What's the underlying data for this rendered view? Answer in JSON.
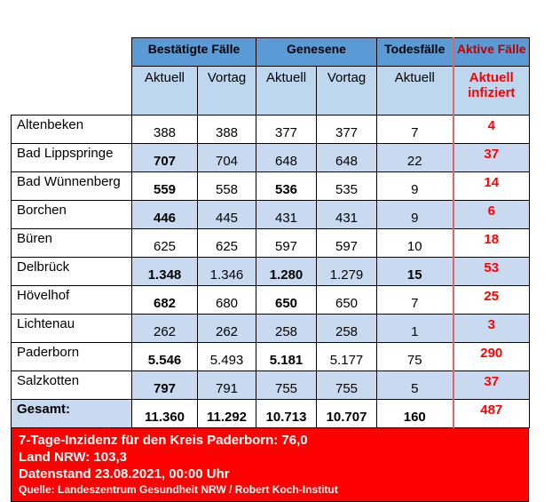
{
  "headers": {
    "confirmed": "Bestätigte Fälle",
    "recovered": "Genesene",
    "deaths": "Todesfälle",
    "active": "Aktive Fälle"
  },
  "subheaders": {
    "current": "Aktuell",
    "previous": "Vortag",
    "deaths_current": "Aktuell",
    "active_line1": "Aktuell",
    "active_line2": "infiziert"
  },
  "rows": [
    {
      "name": "Altenbeken",
      "conf": "388",
      "conf_prev": "388",
      "rec": "377",
      "rec_prev": "377",
      "deaths": "7",
      "active": "4"
    },
    {
      "name": "Bad Lippspringe",
      "conf": "707",
      "conf_prev": "704",
      "rec": "648",
      "rec_prev": "648",
      "deaths": "22",
      "active": "37"
    },
    {
      "name": "Bad Wünnenberg",
      "conf": "559",
      "conf_prev": "558",
      "rec": "536",
      "rec_prev": "535",
      "deaths": "9",
      "active": "14"
    },
    {
      "name": "Borchen",
      "conf": "446",
      "conf_prev": "445",
      "rec": "431",
      "rec_prev": "431",
      "deaths": "9",
      "active": "6"
    },
    {
      "name": "Büren",
      "conf": "625",
      "conf_prev": "625",
      "rec": "597",
      "rec_prev": "597",
      "deaths": "10",
      "active": "18"
    },
    {
      "name": "Delbrück",
      "conf": "1.348",
      "conf_prev": "1.346",
      "rec": "1.280",
      "rec_prev": "1.279",
      "deaths": "15",
      "active": "53"
    },
    {
      "name": "Hövelhof",
      "conf": "682",
      "conf_prev": "680",
      "rec": "650",
      "rec_prev": "650",
      "deaths": "7",
      "active": "25"
    },
    {
      "name": "Lichtenau",
      "conf": "262",
      "conf_prev": "262",
      "rec": "258",
      "rec_prev": "258",
      "deaths": "1",
      "active": "3"
    },
    {
      "name": "Paderborn",
      "conf": "5.546",
      "conf_prev": "5.493",
      "rec": "5.181",
      "rec_prev": "5.177",
      "deaths": "75",
      "active": "290"
    },
    {
      "name": "Salzkotten",
      "conf": "797",
      "conf_prev": "791",
      "rec": "755",
      "rec_prev": "755",
      "deaths": "5",
      "active": "37"
    }
  ],
  "total": {
    "name": "Gesamt:",
    "conf": "11.360",
    "conf_prev": "11.292",
    "rec": "10.713",
    "rec_prev": "10.707",
    "deaths": "160",
    "active": "487"
  },
  "footer": {
    "incidence": "7-Tage-Inzidenz für den Kreis Paderborn: 76,0",
    "nrw": "Land NRW: 103,3",
    "date": "Datenstand 23.08.2021, 00:00 Uhr",
    "source": "Quelle: Landeszentrum Gesundheit NRW / Robert Koch-Institut"
  },
  "colors": {
    "header_blue": "#5b9bd5",
    "subheader_blue": "#bdd7ee",
    "stripe_blue": "#c9daf0",
    "active_red": "#ff0000",
    "footer_red": "#ff0000"
  }
}
